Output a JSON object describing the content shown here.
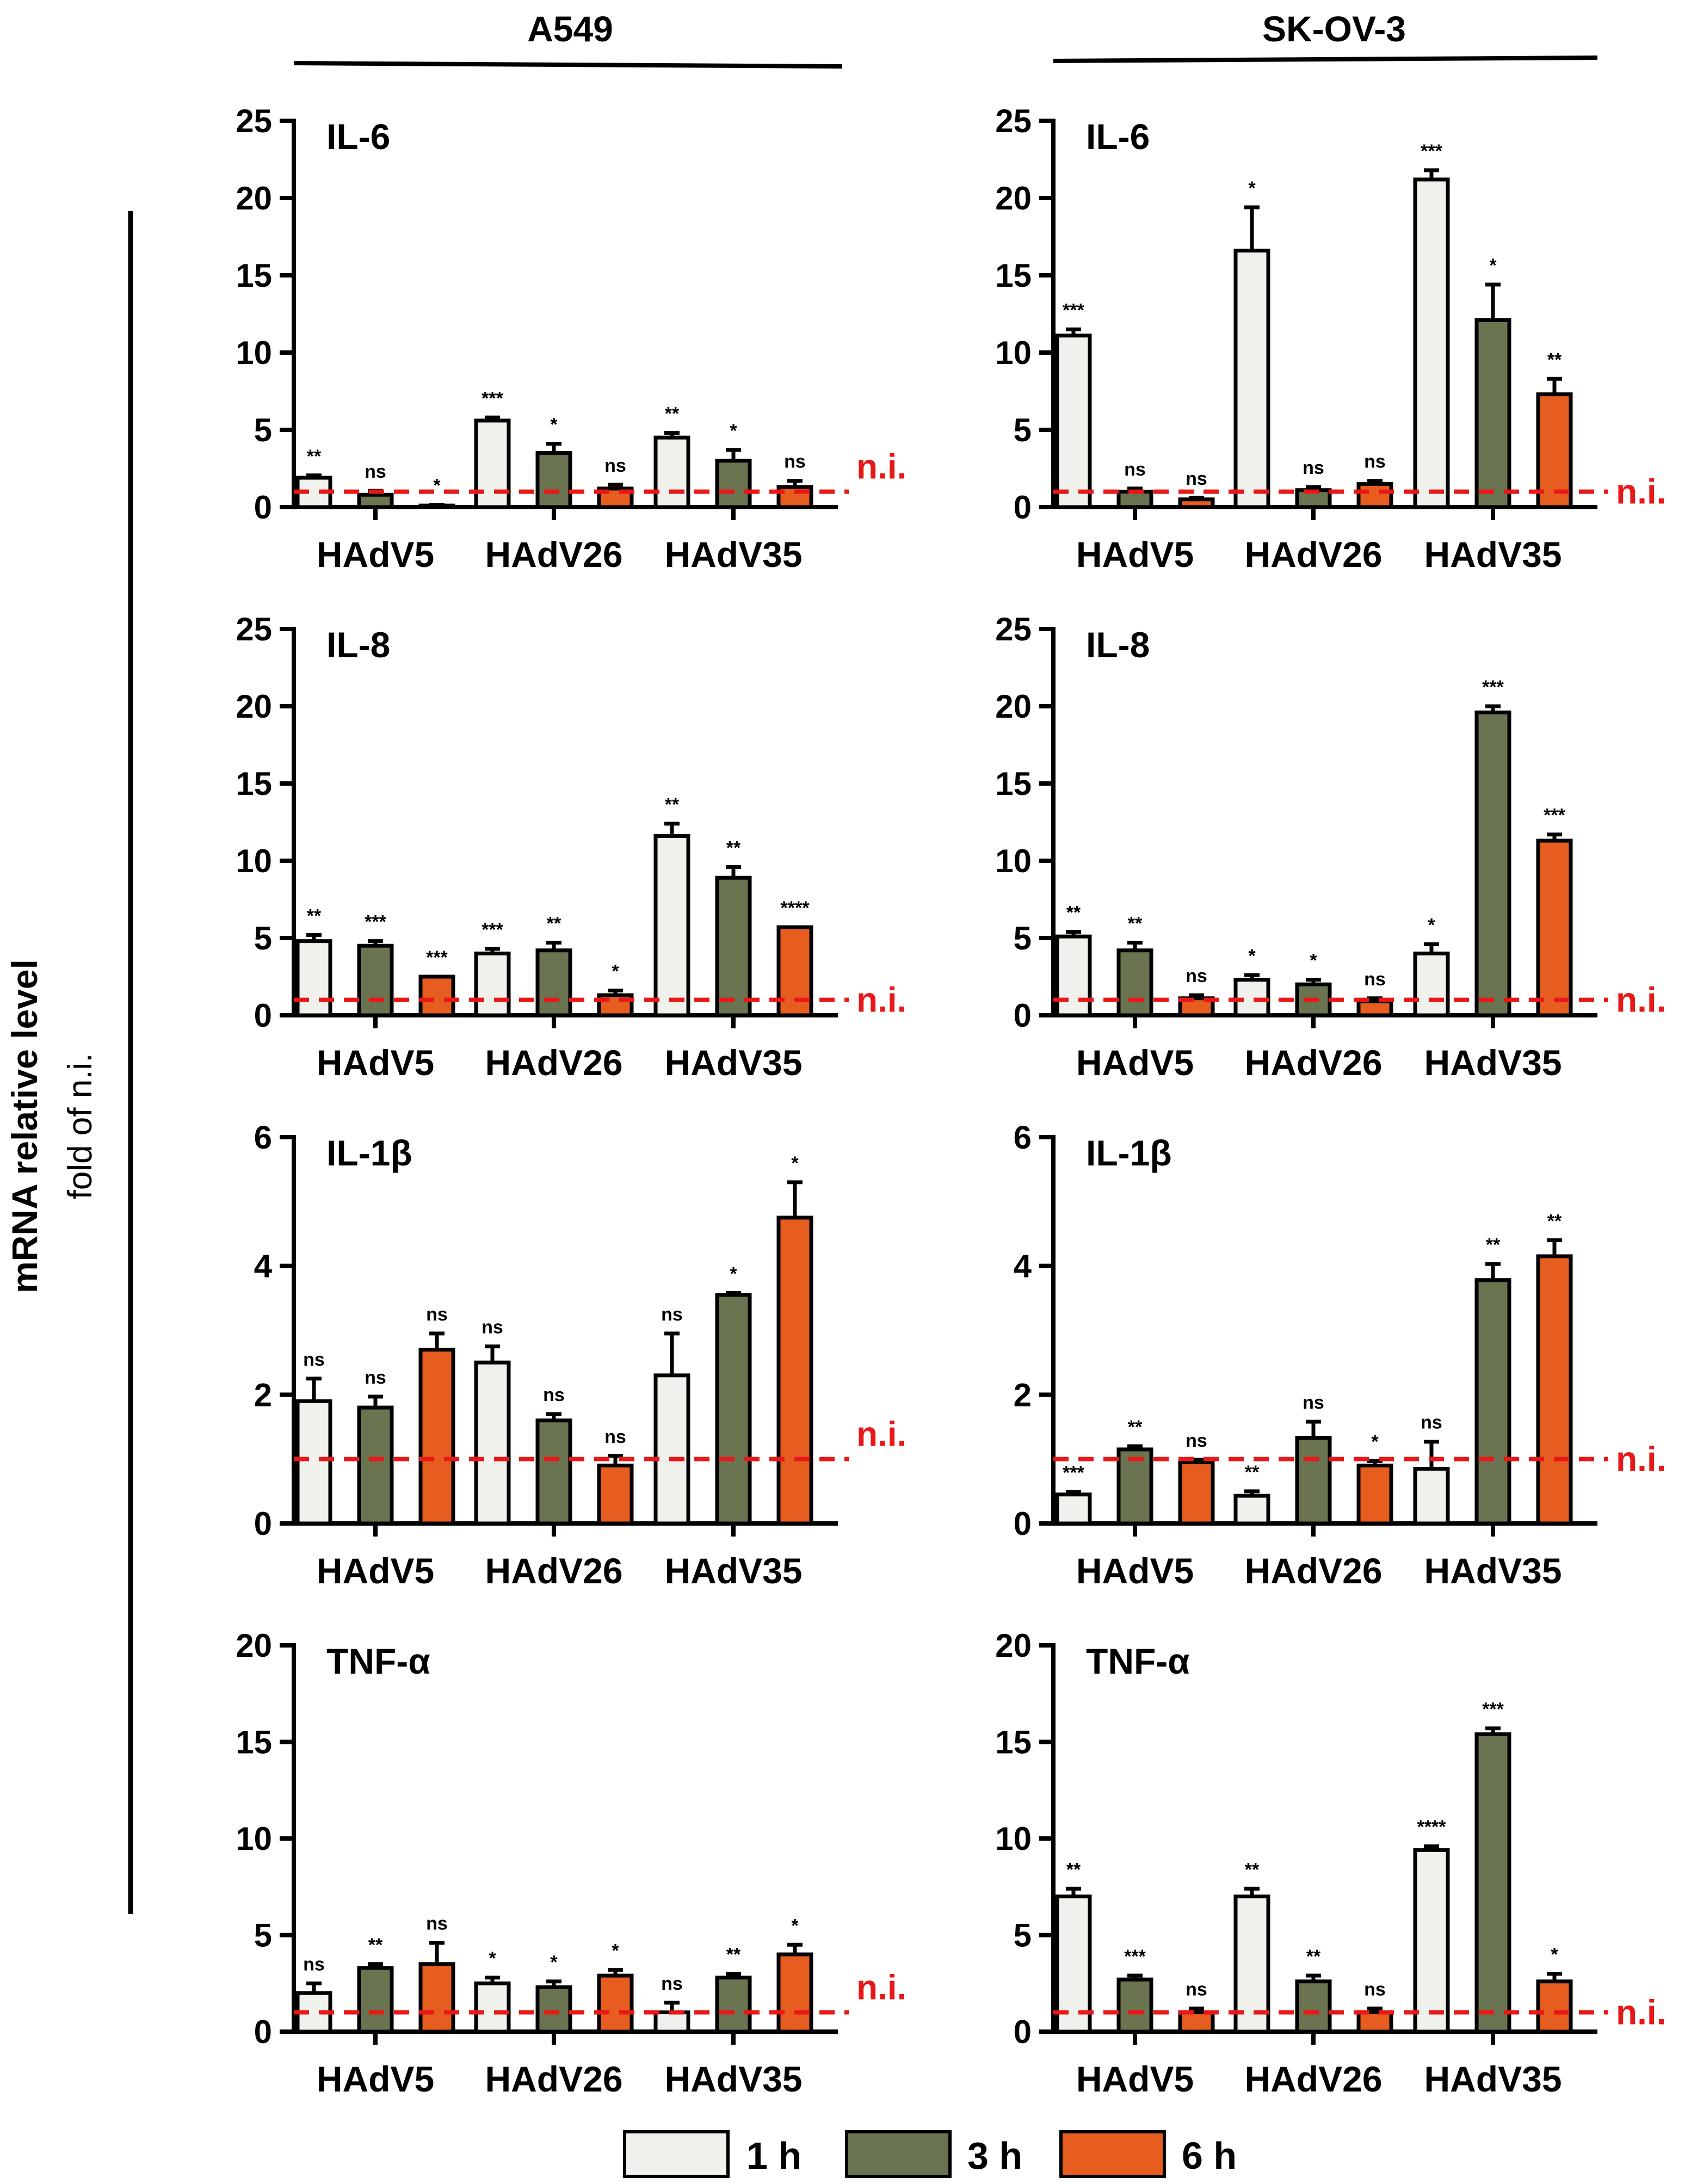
{
  "columns": [
    "A549",
    "SK-OV-3"
  ],
  "ylabel": "mRNA relative level",
  "ylabel_sub": "fold of n.i.",
  "ni_label": "n.i.",
  "colors": {
    "1 h": "#f0f1ec",
    "3 h": "#6b7450",
    "6 h": "#e75d1f",
    "ni_line": "#e81818",
    "axis": "#000000"
  },
  "legend": [
    "1 h",
    "3 h",
    "6 h"
  ],
  "chart_data": [
    {
      "type": "bar",
      "cell": "A549",
      "title": "IL-6",
      "categories": [
        "HAdV5",
        "HAdV26",
        "HAdV35"
      ],
      "ylim": [
        0,
        25
      ],
      "yticks": [
        0,
        5,
        10,
        15,
        20,
        25
      ],
      "ni": 1,
      "show_ni_label": true,
      "series": [
        {
          "name": "1 h",
          "values": [
            1.9,
            5.6,
            4.5
          ],
          "errors": [
            0.15,
            0.2,
            0.3
          ],
          "sig": [
            "**",
            "***",
            "**"
          ]
        },
        {
          "name": "3 h",
          "values": [
            0.8,
            3.5,
            3.0
          ],
          "errors": [
            0.25,
            0.6,
            0.7
          ],
          "sig": [
            "ns",
            "*",
            "*"
          ]
        },
        {
          "name": "6 h",
          "values": [
            0.1,
            1.2,
            1.3
          ],
          "errors": [
            0.05,
            0.25,
            0.4
          ],
          "sig": [
            "*",
            "ns",
            "ns"
          ]
        }
      ]
    },
    {
      "type": "bar",
      "cell": "SK-OV-3",
      "title": "IL-6",
      "categories": [
        "HAdV5",
        "HAdV26",
        "HAdV35"
      ],
      "ylim": [
        0,
        25
      ],
      "yticks": [
        0,
        5,
        10,
        15,
        20,
        25
      ],
      "ni": 1,
      "show_ni_label": true,
      "series": [
        {
          "name": "1 h",
          "values": [
            11.1,
            16.6,
            21.2
          ],
          "errors": [
            0.4,
            2.8,
            0.6
          ],
          "sig": [
            "***",
            "*",
            "***"
          ]
        },
        {
          "name": "3 h",
          "values": [
            1.0,
            1.1,
            12.1
          ],
          "errors": [
            0.2,
            0.2,
            2.3
          ],
          "sig": [
            "ns",
            "ns",
            "*"
          ]
        },
        {
          "name": "6 h",
          "values": [
            0.5,
            1.5,
            7.3
          ],
          "errors": [
            0.1,
            0.2,
            1.0
          ],
          "sig": [
            "ns",
            "ns",
            "**"
          ]
        }
      ]
    },
    {
      "type": "bar",
      "cell": "A549",
      "title": "IL-8",
      "categories": [
        "HAdV5",
        "HAdV26",
        "HAdV35"
      ],
      "ylim": [
        0,
        25
      ],
      "yticks": [
        0,
        5,
        10,
        15,
        20,
        25
      ],
      "ni": 1,
      "show_ni_label": true,
      "series": [
        {
          "name": "1 h",
          "values": [
            4.8,
            4.0,
            11.6
          ],
          "errors": [
            0.4,
            0.3,
            0.8
          ],
          "sig": [
            "**",
            "***",
            "**"
          ]
        },
        {
          "name": "3 h",
          "values": [
            4.5,
            4.2,
            8.9
          ],
          "errors": [
            0.3,
            0.5,
            0.7
          ],
          "sig": [
            "***",
            "**",
            "**"
          ]
        },
        {
          "name": "6 h",
          "values": [
            2.5,
            1.3,
            5.7
          ],
          "errors": [
            0.0,
            0.3,
            0.0
          ],
          "sig": [
            "***",
            "*",
            "****"
          ]
        }
      ]
    },
    {
      "type": "bar",
      "cell": "SK-OV-3",
      "title": "IL-8",
      "categories": [
        "HAdV5",
        "HAdV26",
        "HAdV35"
      ],
      "ylim": [
        0,
        25
      ],
      "yticks": [
        0,
        5,
        10,
        15,
        20,
        25
      ],
      "ni": 1,
      "show_ni_label": true,
      "series": [
        {
          "name": "1 h",
          "values": [
            5.1,
            2.3,
            4.0
          ],
          "errors": [
            0.3,
            0.3,
            0.6
          ],
          "sig": [
            "**",
            "*",
            "*"
          ]
        },
        {
          "name": "3 h",
          "values": [
            4.2,
            2.0,
            19.6
          ],
          "errors": [
            0.5,
            0.3,
            0.4
          ],
          "sig": [
            "**",
            "*",
            "***"
          ]
        },
        {
          "name": "6 h",
          "values": [
            1.1,
            0.9,
            11.3
          ],
          "errors": [
            0.2,
            0.2,
            0.4
          ],
          "sig": [
            "ns",
            "ns",
            "***"
          ]
        }
      ]
    },
    {
      "type": "bar",
      "cell": "A549",
      "title": "IL-1β",
      "categories": [
        "HAdV5",
        "HAdV26",
        "HAdV35"
      ],
      "ylim": [
        0,
        6
      ],
      "yticks": [
        0,
        2,
        4,
        6
      ],
      "ni": 1,
      "show_ni_label": true,
      "series": [
        {
          "name": "1 h",
          "values": [
            1.9,
            2.5,
            2.3
          ],
          "errors": [
            0.35,
            0.25,
            0.65
          ],
          "sig": [
            "ns",
            "ns",
            "ns"
          ]
        },
        {
          "name": "3 h",
          "values": [
            1.8,
            1.6,
            3.55
          ],
          "errors": [
            0.17,
            0.1,
            0.03
          ],
          "sig": [
            "ns",
            "ns",
            "*"
          ]
        },
        {
          "name": "6 h",
          "values": [
            2.7,
            0.9,
            4.75
          ],
          "errors": [
            0.25,
            0.15,
            0.55
          ],
          "sig": [
            "ns",
            "ns",
            "*"
          ]
        }
      ]
    },
    {
      "type": "bar",
      "cell": "SK-OV-3",
      "title": "IL-1β",
      "categories": [
        "HAdV5",
        "HAdV26",
        "HAdV35"
      ],
      "ylim": [
        0,
        6
      ],
      "yticks": [
        0,
        2,
        4,
        6
      ],
      "ni": 1,
      "show_ni_label": true,
      "series": [
        {
          "name": "1 h",
          "values": [
            0.45,
            0.43,
            0.85
          ],
          "errors": [
            0.04,
            0.07,
            0.42
          ],
          "sig": [
            "***",
            "**",
            "ns"
          ]
        },
        {
          "name": "3 h",
          "values": [
            1.15,
            1.33,
            3.78
          ],
          "errors": [
            0.05,
            0.25,
            0.25
          ],
          "sig": [
            "**",
            "ns",
            "**"
          ]
        },
        {
          "name": "6 h",
          "values": [
            0.95,
            0.9,
            4.15
          ],
          "errors": [
            0.04,
            0.07,
            0.25
          ],
          "sig": [
            "ns",
            "*",
            "**"
          ]
        }
      ]
    },
    {
      "type": "bar",
      "cell": "A549",
      "title": "TNF-α",
      "categories": [
        "HAdV5",
        "HAdV26",
        "HAdV35"
      ],
      "ylim": [
        0,
        20
      ],
      "yticks": [
        0,
        5,
        10,
        15,
        20
      ],
      "ni": 1,
      "show_ni_label": true,
      "series": [
        {
          "name": "1 h",
          "values": [
            2.0,
            2.5,
            1.0
          ],
          "errors": [
            0.5,
            0.3,
            0.5
          ],
          "sig": [
            "ns",
            "*",
            "ns"
          ]
        },
        {
          "name": "3 h",
          "values": [
            3.3,
            2.3,
            2.8
          ],
          "errors": [
            0.2,
            0.3,
            0.2
          ],
          "sig": [
            "**",
            "*",
            "**"
          ]
        },
        {
          "name": "6 h",
          "values": [
            3.5,
            2.9,
            4.0
          ],
          "errors": [
            1.1,
            0.3,
            0.5
          ],
          "sig": [
            "ns",
            "*",
            "*"
          ]
        }
      ]
    },
    {
      "type": "bar",
      "cell": "SK-OV-3",
      "title": "TNF-α",
      "categories": [
        "HAdV5",
        "HAdV26",
        "HAdV35"
      ],
      "ylim": [
        0,
        20
      ],
      "yticks": [
        0,
        5,
        10,
        15,
        20
      ],
      "ni": 1,
      "show_ni_label": true,
      "series": [
        {
          "name": "1 h",
          "values": [
            7.0,
            7.0,
            9.4
          ],
          "errors": [
            0.4,
            0.4,
            0.2
          ],
          "sig": [
            "**",
            "**",
            "****"
          ]
        },
        {
          "name": "3 h",
          "values": [
            2.7,
            2.6,
            15.4
          ],
          "errors": [
            0.2,
            0.3,
            0.3
          ],
          "sig": [
            "***",
            "**",
            "***"
          ]
        },
        {
          "name": "6 h",
          "values": [
            1.0,
            1.0,
            2.6
          ],
          "errors": [
            0.2,
            0.2,
            0.4
          ],
          "sig": [
            "ns",
            "ns",
            "*"
          ]
        }
      ]
    }
  ]
}
